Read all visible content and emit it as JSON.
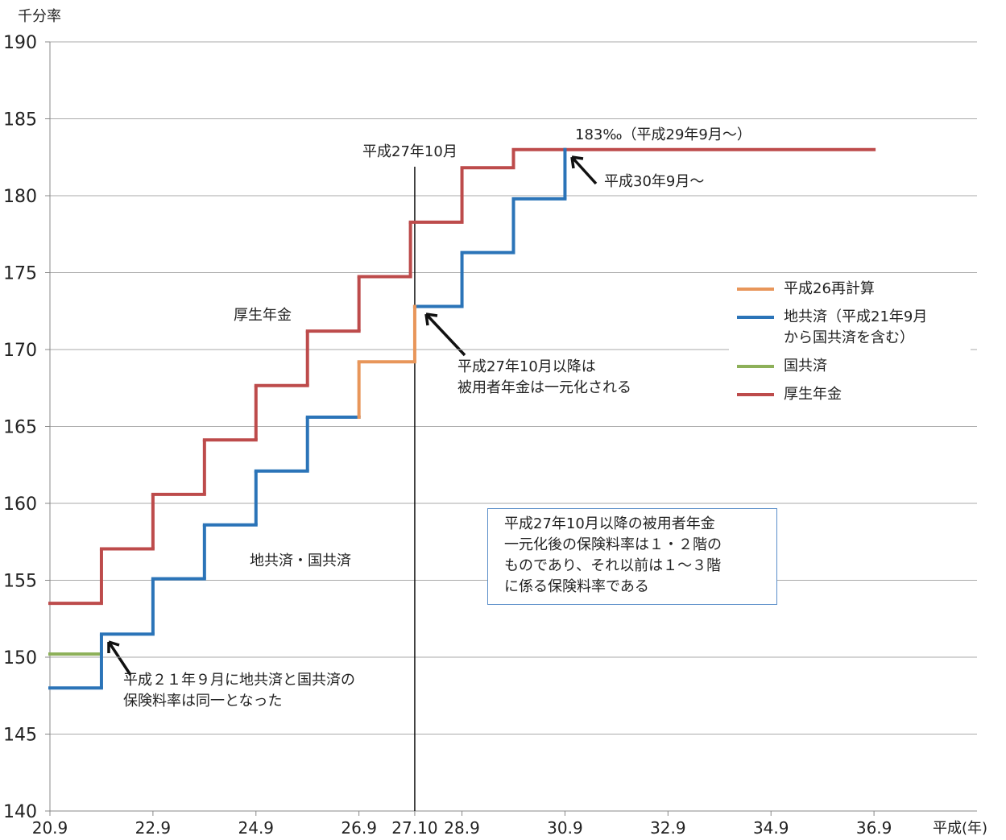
{
  "chart_data": {
    "type": "step",
    "y_axis_label": "千分率",
    "x_axis_label": "平成(年)",
    "xlim": [
      20.75,
      38.75
    ],
    "ylim": [
      140,
      190
    ],
    "yticks": [
      140,
      145,
      150,
      155,
      160,
      165,
      170,
      175,
      180,
      185,
      190
    ],
    "xticks": [
      {
        "value": 20.75,
        "label": "20.9"
      },
      {
        "value": 22.75,
        "label": "22.9"
      },
      {
        "value": 24.75,
        "label": "24.9"
      },
      {
        "value": 26.75,
        "label": "26.9"
      },
      {
        "value": 27.8333,
        "label": "27.10"
      },
      {
        "value": 28.75,
        "label": "28.9"
      },
      {
        "value": 30.75,
        "label": "30.9"
      },
      {
        "value": 32.75,
        "label": "32.9"
      },
      {
        "value": 34.75,
        "label": "34.9"
      },
      {
        "value": 36.75,
        "label": "36.9"
      }
    ],
    "grid": true,
    "series": [
      {
        "name": "平成26再計算",
        "color": "#e8965a",
        "x_edges": [
          26.75,
          26.75,
          27.8333,
          27.8333
        ],
        "values": [
          165.6,
          169.2,
          172.8
        ]
      },
      {
        "name": "地共済（平成21年9月\nから国共済を含む）",
        "color": "#2b74b8",
        "x_edges": [
          20.75,
          21.75,
          22.75,
          23.75,
          24.75,
          25.75,
          26.75,
          27.8333,
          28.75,
          29.75,
          30.75,
          30.75
        ],
        "values": [
          148.0,
          151.5,
          155.1,
          158.6,
          162.1,
          165.6,
          null,
          172.8,
          176.3,
          179.8,
          183.0
        ]
      },
      {
        "name": "国共済",
        "color": "#8db059",
        "x_edges": [
          20.75,
          21.75
        ],
        "values": [
          150.2
        ]
      },
      {
        "name": "厚生年金",
        "color": "#bd4b4b",
        "x_edges": [
          20.75,
          21.75,
          22.75,
          23.75,
          24.75,
          25.75,
          26.75,
          27.75,
          28.75,
          29.75,
          36.75
        ],
        "values": [
          153.5,
          157.04,
          160.58,
          164.12,
          167.66,
          171.2,
          174.74,
          178.28,
          181.82,
          183.0
        ]
      }
    ],
    "vline": {
      "x": 27.8333,
      "label": "平成27年10月"
    },
    "annotations": [
      "183‰（平成29年9月～）",
      "平成30年9月～",
      "厚生年金",
      "平成27年10月以降は\n被用者年金は一元化される",
      "地共済・国共済",
      "平成２１年９月に地共済と国共済の\n保険料率は同一となった"
    ],
    "box_note": "平成27年10月以降の被用者年金\n一元化後の保険料率は１・２階の\nものであり、それ以前は１～３階\nに係る保険料率である"
  }
}
